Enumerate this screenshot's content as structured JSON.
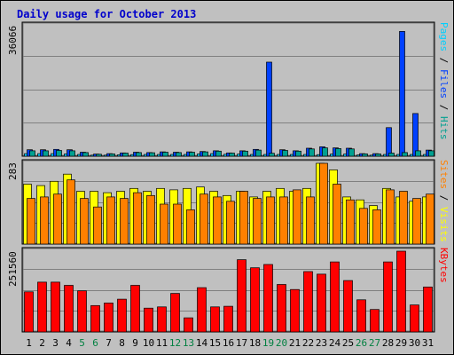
{
  "colors": {
    "pages": "#00d0ff",
    "files": "#0040ff",
    "hits": "#00a090",
    "sites": "#ff8000",
    "visits": "#ffff00",
    "kbytes": "#ff0000",
    "title": "#0000cc",
    "weekend_label": "#008040"
  },
  "chart_data": {
    "type": "bar",
    "title": "Daily usage for October 2013",
    "categories": [
      "1",
      "2",
      "3",
      "4",
      "5",
      "6",
      "7",
      "8",
      "9",
      "10",
      "11",
      "12",
      "13",
      "14",
      "15",
      "16",
      "17",
      "18",
      "19",
      "20",
      "21",
      "22",
      "23",
      "24",
      "25",
      "26",
      "27",
      "28",
      "29",
      "30",
      "31"
    ],
    "weekend_days": [
      "5",
      "6",
      "12",
      "13",
      "19",
      "20",
      "26",
      "27"
    ],
    "panels": [
      {
        "name": "hits",
        "ylabel": [
          "Pages",
          "Files",
          "Hits"
        ],
        "separator": " / ",
        "ymax_label": "36066",
        "ylim": [
          0,
          36066
        ],
        "series": [
          {
            "name": "Pages",
            "values": [
              700,
              700,
              700,
              650,
              500,
              300,
              300,
              400,
              450,
              500,
              500,
              500,
              500,
              650,
              700,
              550,
              600,
              500,
              500,
              500,
              500,
              500,
              450,
              600,
              600,
              350,
              300,
              500,
              500,
              500,
              500
            ]
          },
          {
            "name": "Files",
            "values": [
              1800,
              1800,
              1900,
              1800,
              1100,
              600,
              700,
              900,
              1100,
              1000,
              1200,
              1100,
              1200,
              1300,
              1500,
              900,
              1500,
              1900,
              26000,
              1800,
              1500,
              2200,
              2600,
              2300,
              2200,
              700,
              700,
              7900,
              34500,
              11800,
              1700
            ]
          },
          {
            "name": "Hits",
            "values": [
              1500,
              1500,
              1600,
              1500,
              1000,
              550,
              650,
              850,
              1000,
              950,
              1100,
              1000,
              1100,
              1200,
              1400,
              850,
              1400,
              1700,
              800,
              1600,
              1400,
              2000,
              2300,
              2100,
              2000,
              650,
              650,
              850,
              1000,
              1500,
              1500
            ]
          }
        ]
      },
      {
        "name": "visits",
        "ylabel": [
          "Sites",
          "Visits"
        ],
        "separator": " / ",
        "ymax_label": "283",
        "ylim": [
          0,
          283
        ],
        "series": [
          {
            "name": "Visits",
            "values": [
              210,
              205,
              220,
              245,
              185,
              185,
              180,
              185,
              195,
              185,
              195,
              190,
              195,
              200,
              185,
              170,
              185,
              165,
              185,
              195,
              185,
              195,
              283,
              260,
              165,
              155,
              135,
              195,
              165,
              150,
              165
            ]
          },
          {
            "name": "Sites",
            "values": [
              160,
              165,
              175,
              225,
              160,
              130,
              165,
              160,
              180,
              170,
              140,
              140,
              120,
              175,
              165,
              150,
              185,
              160,
              165,
              165,
              190,
              165,
              283,
              210,
              155,
              125,
              120,
              190,
              185,
              160,
              175
            ]
          }
        ]
      },
      {
        "name": "kbytes",
        "ylabel": [
          "KBytes"
        ],
        "separator": "",
        "ymax_label": "251560",
        "ylim": [
          0,
          251560
        ],
        "series": [
          {
            "name": "KBytes",
            "values": [
              125000,
              155000,
              155000,
              145000,
              128000,
              82000,
              90000,
              102000,
              145000,
              74000,
              78000,
              120000,
              44000,
              138000,
              78000,
              80000,
              225000,
              200000,
              210000,
              148000,
              132000,
              188000,
              180000,
              218000,
              160000,
              100000,
              70000,
              218000,
              251560,
              84000,
              140000
            ]
          }
        ]
      }
    ]
  }
}
